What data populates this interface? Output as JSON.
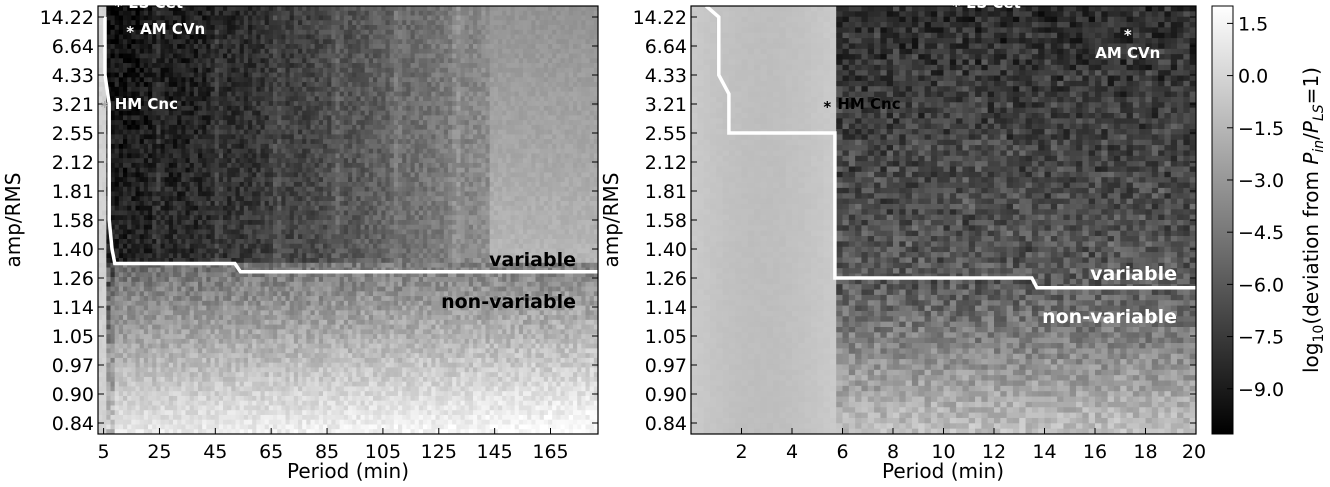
{
  "chart_data": [
    {
      "type": "heatmap",
      "xlabel": "Period (min)",
      "ylabel": "amp/RMS",
      "xlim": [
        3,
        182
      ],
      "x_ticks": [
        5,
        25,
        45,
        65,
        85,
        105,
        125,
        145,
        165
      ],
      "y_ticks": [
        "0.84",
        "0.90",
        "0.97",
        "1.05",
        "1.14",
        "1.26",
        "1.40",
        "1.58",
        "1.81",
        "2.12",
        "2.55",
        "3.21",
        "4.33",
        "6.64",
        "14.22"
      ],
      "threshold_curve": [
        {
          "x": 5.5,
          "y": "14.22"
        },
        {
          "x": 5.5,
          "y": "4.33"
        },
        {
          "x": 7,
          "y": "3.21"
        },
        {
          "x": 7,
          "y": "1.58"
        },
        {
          "x": 8,
          "y": "1.40"
        },
        {
          "x": 9,
          "y": "1.33"
        },
        {
          "x": 52,
          "y": "1.33"
        },
        {
          "x": 54,
          "y": "1.29"
        },
        {
          "x": 182,
          "y": "1.29"
        }
      ],
      "annotations": [
        {
          "label": "ES Cet",
          "x": 10.3,
          "y": "14.22+",
          "color": "#ffffff"
        },
        {
          "label": "AM CVn",
          "x": 14.5,
          "y": "14.22-",
          "color": "#ffffff"
        },
        {
          "label": "HM Cnc",
          "x": 5.4,
          "y": "3.21",
          "color": "#ffffff"
        }
      ],
      "region_labels": {
        "above": "variable",
        "below": "non-variable"
      }
    },
    {
      "type": "heatmap",
      "xlabel": "Period (min)",
      "ylabel": "amp/RMS",
      "xlim": [
        0,
        20
      ],
      "x_ticks": [
        2,
        4,
        6,
        8,
        10,
        12,
        14,
        16,
        18,
        20
      ],
      "y_ticks": [
        "0.84",
        "0.90",
        "0.97",
        "1.05",
        "1.14",
        "1.26",
        "1.40",
        "1.58",
        "1.81",
        "2.12",
        "2.55",
        "3.21",
        "4.33",
        "6.64",
        "14.22"
      ],
      "threshold_curve": [
        {
          "x": 0.6,
          "y": "top"
        },
        {
          "x": 1.1,
          "y": "14.22"
        },
        {
          "x": 1.1,
          "y": "4.33"
        },
        {
          "x": 1.5,
          "y": "3.60"
        },
        {
          "x": 1.5,
          "y": "2.55"
        },
        {
          "x": 5.7,
          "y": "2.55"
        },
        {
          "x": 5.7,
          "y": "1.26"
        },
        {
          "x": 13.5,
          "y": "1.26"
        },
        {
          "x": 13.7,
          "y": "1.22"
        },
        {
          "x": 20,
          "y": "1.22"
        }
      ],
      "annotations": [
        {
          "label": "ES Cet",
          "x": 10.5,
          "y": "14.22+",
          "color": "#ffffff"
        },
        {
          "label": "AM CVn",
          "x": 17.3,
          "y": "6.64+",
          "color": "#ffffff"
        },
        {
          "label": "HM Cnc",
          "x": 5.4,
          "y": "3.21",
          "color": "#000000"
        }
      ],
      "region_labels": {
        "above": "variable",
        "below": "non-variable"
      }
    }
  ],
  "colorbar": {
    "label": "log10(deviation from Pin/PLS=1)",
    "label_parts": {
      "prefix": "log",
      "sub1": "10",
      "mid": "(deviation from ",
      "p": "P",
      "sub2": "in",
      "slash": "/",
      "p2": "P",
      "sub3": "LS",
      "suffix": "=1)"
    },
    "ticks": [
      "1.5",
      "0.0",
      "−1.5",
      "−3.0",
      "−4.5",
      "−6.0",
      "−7.5",
      "−9.0"
    ],
    "range": [
      -10.3,
      2.0
    ]
  }
}
